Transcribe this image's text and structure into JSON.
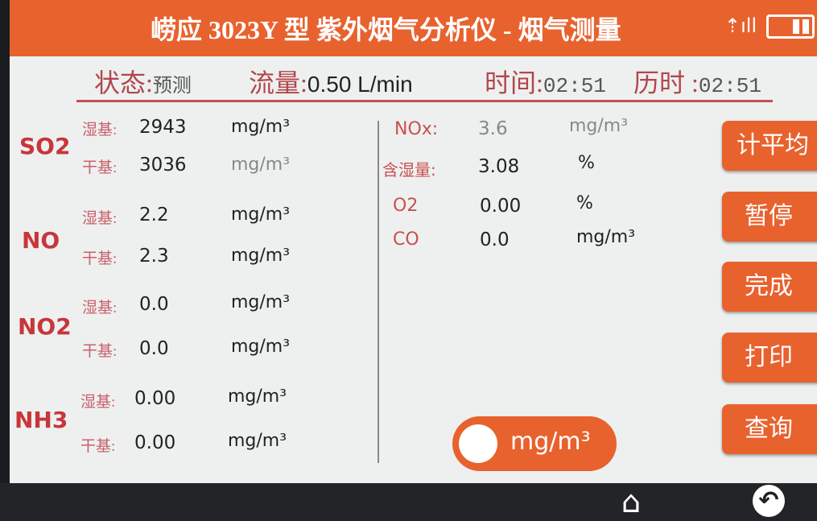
{
  "header": {
    "title": "崂应 3023Y 型 紫外烟气分析仪 - 烟气测量",
    "icons": [
      "signal-icon",
      "battery-icon"
    ]
  },
  "status": {
    "state_label": "状态:",
    "state": "预测",
    "flow_label": "流量:",
    "flow": "0.50 L/min",
    "time_label": "时间:",
    "time": "02:51",
    "elapsed_label": "历时 :",
    "elapsed": "02:51"
  },
  "gases": [
    {
      "name": "SO2",
      "wet_label": "湿基:",
      "wet": "2943",
      "wet_unit": "mg/m³",
      "dry_label": "干基:",
      "dry": "3036",
      "dry_unit": "mg/m³"
    },
    {
      "name": "NO",
      "wet_label": "湿基:",
      "wet": "2.2",
      "wet_unit": "mg/m³",
      "dry_label": "干基:",
      "dry": "2.3",
      "dry_unit": "mg/m³"
    },
    {
      "name": "NO2",
      "wet_label": "湿基:",
      "wet": "0.0",
      "wet_unit": "mg/m³",
      "dry_label": "干基:",
      "dry": "0.0",
      "dry_unit": "mg/m³"
    },
    {
      "name": "NH3",
      "wet_label": "湿基:",
      "wet": "0.00",
      "wet_unit": "mg/m³",
      "dry_label": "干基:",
      "dry": "0.00",
      "dry_unit": "mg/m³"
    }
  ],
  "right": [
    {
      "label": "NOx:",
      "value": "3.6",
      "unit": "mg/m³"
    },
    {
      "label": "含湿量:",
      "value": "3.08",
      "unit": "%"
    },
    {
      "label": "O2",
      "value": "0.00",
      "unit": "%"
    },
    {
      "label": "CO",
      "value": "0.0",
      "unit": "mg/m³"
    }
  ],
  "buttons": [
    "计平均",
    "暂停",
    "完成",
    "打印",
    "查询"
  ],
  "toggle": {
    "label": "mg/m³"
  },
  "nav": {
    "home": "home-icon",
    "back": "back-icon"
  },
  "colors": {
    "accent": "#e8622e",
    "label": "#c8363a"
  }
}
